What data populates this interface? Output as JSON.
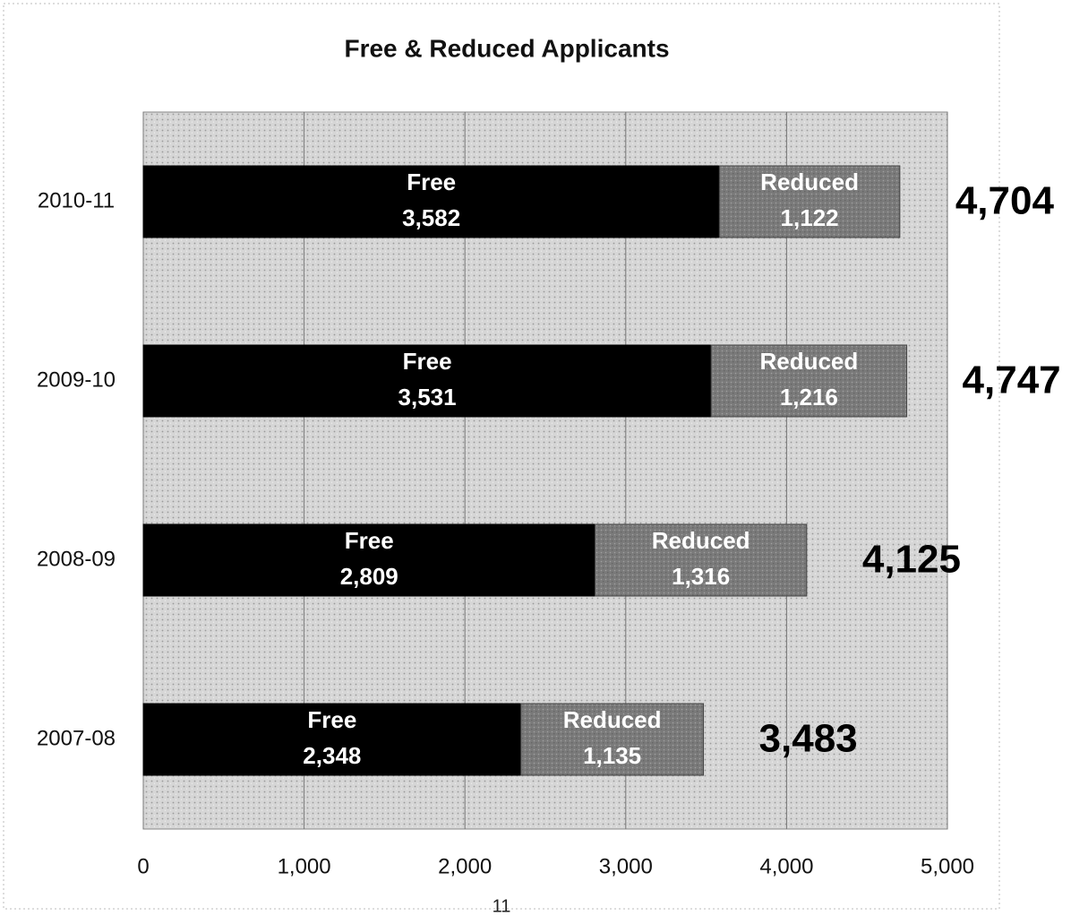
{
  "chart_data": {
    "type": "stacked-barh",
    "title": "Free & Reduced Applicants",
    "categories": [
      "2010-11",
      "2009-10",
      "2008-09",
      "2007-08"
    ],
    "series": [
      {
        "name": "Free",
        "color": "#000000",
        "values": [
          3582,
          3531,
          2809,
          2348
        ],
        "value_labels": [
          "3,582",
          "3,531",
          "2,809",
          "2,348"
        ]
      },
      {
        "name": "Reduced",
        "color": "#7a7a7a",
        "values": [
          1122,
          1216,
          1316,
          1135
        ],
        "value_labels": [
          "1,122",
          "1,216",
          "1,316",
          "1,135"
        ]
      }
    ],
    "totals": [
      4704,
      4747,
      4125,
      3483
    ],
    "total_labels": [
      "4,704",
      "4,747",
      "4,125",
      "3,483"
    ],
    "xlim": [
      0,
      5000
    ],
    "xticks": [
      0,
      {
        "value": 1000,
        "label": "1,000"
      },
      {
        "value": 2000,
        "label": "2,000"
      },
      {
        "value": 3000,
        "label": "3,000"
      },
      {
        "value": 4000,
        "label": "4,000"
      },
      {
        "value": 5000,
        "label": "5,000"
      }
    ],
    "grid": true
  },
  "footer": "11"
}
